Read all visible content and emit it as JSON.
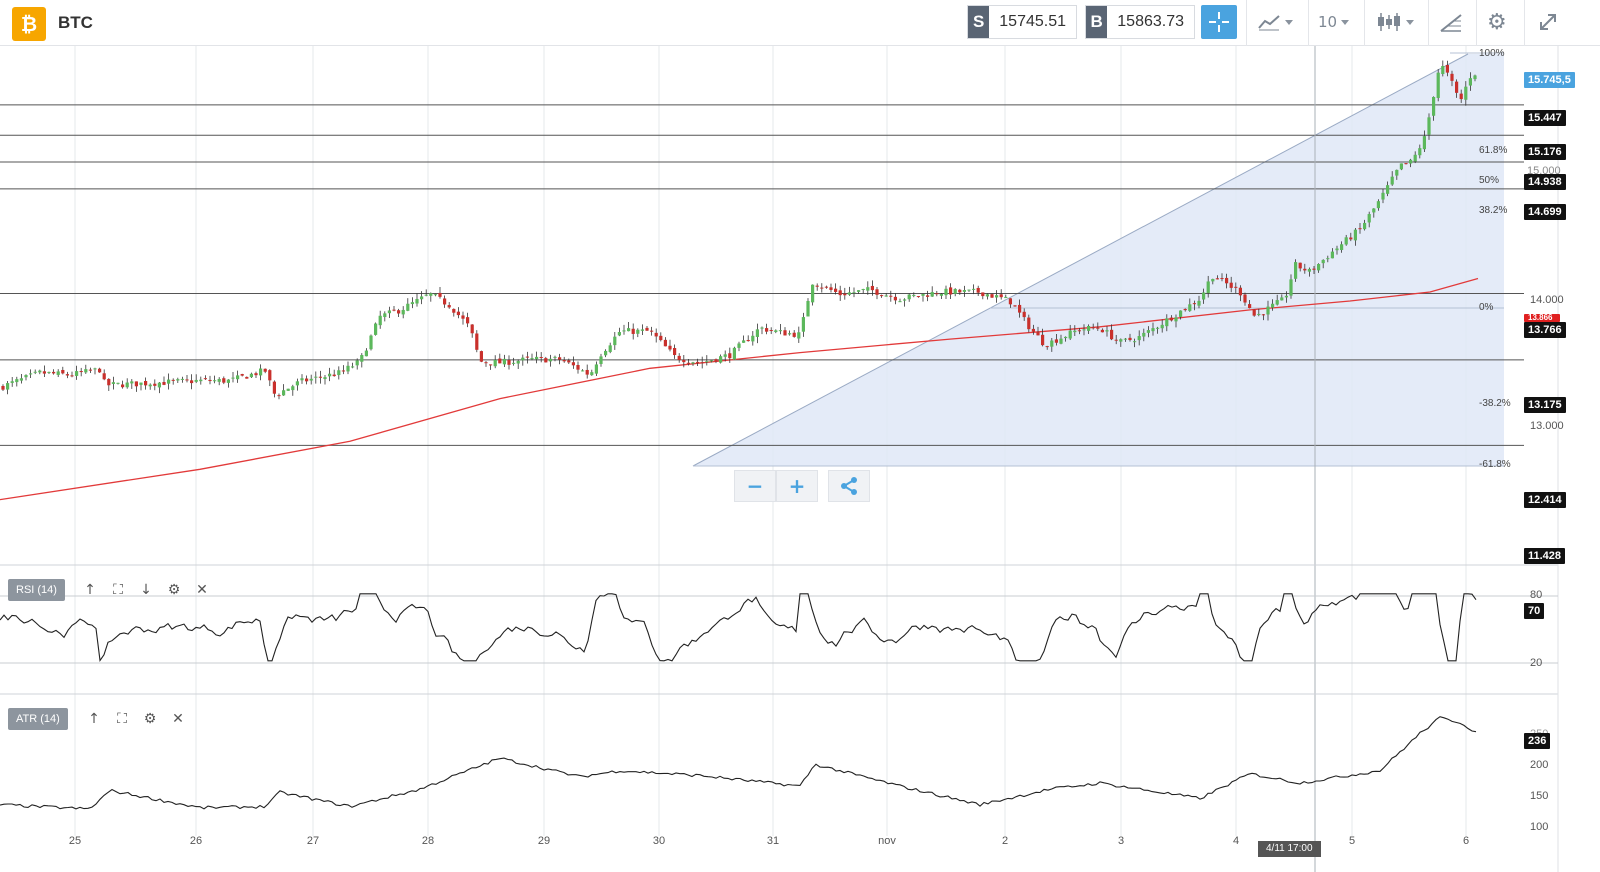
{
  "header": {
    "logo_glyph": "₿",
    "symbol": "BTC",
    "sell_tag": "S",
    "sell_price": "15745.51",
    "buy_tag": "B",
    "buy_price": "15863.73",
    "period": "10",
    "icons": [
      "crosshair-icon",
      "line-chart-icon",
      "candlestick-icon",
      "draw-tool-icon",
      "gear-icon",
      "expand-icon"
    ]
  },
  "colors": {
    "accent": "#4aa3df",
    "bull": "#5cb85c",
    "bear": "#c9302c",
    "ma": "#e23a3a",
    "fib_fill": "#dfe8f7"
  },
  "price_axis": {
    "current": "15.745,5",
    "levels": [
      "15.447",
      "15.176",
      "14.938",
      "14.699",
      "13.766",
      "13.175",
      "12.414",
      "11.428"
    ],
    "ticks": [
      "15.000",
      "14.000",
      "13.000"
    ],
    "red_marker": "13.866"
  },
  "fibonacci": {
    "labels": [
      "100%",
      "61.8%",
      "50%",
      "38.2%",
      "0%",
      "-38.2%",
      "-61.8%"
    ]
  },
  "zoom": {
    "minus": "−",
    "plus": "+",
    "share_icon": "share-icon"
  },
  "rsi": {
    "label": "RSI (14)",
    "upper": "80",
    "lower": "20",
    "value": "70"
  },
  "atr": {
    "label": "ATR (14)",
    "ticks": [
      "250",
      "200",
      "150",
      "100"
    ],
    "value": "236"
  },
  "x_axis": {
    "labels": [
      "25",
      "26",
      "27",
      "28",
      "29",
      "30",
      "31",
      "nov",
      "2",
      "3",
      "4",
      "5",
      "6"
    ],
    "cursor_time": "4/11 17:00"
  },
  "chart_data": {
    "type": "candlestick",
    "title": "",
    "series": [
      {
        "name": "",
        "description": "price trending from ~12.900 to ~15.800 over Oct 25 – Nov 6"
      }
    ],
    "x_categories": [
      "25",
      "26",
      "27",
      "28",
      "29",
      "30",
      "31",
      "nov",
      "2",
      "3",
      "4",
      "5",
      "6"
    ],
    "horizontal_levels": [
      15447,
      15176,
      14938,
      14699,
      13766,
      13175,
      12414
    ],
    "ylim": [
      11428,
      15900
    ]
  }
}
